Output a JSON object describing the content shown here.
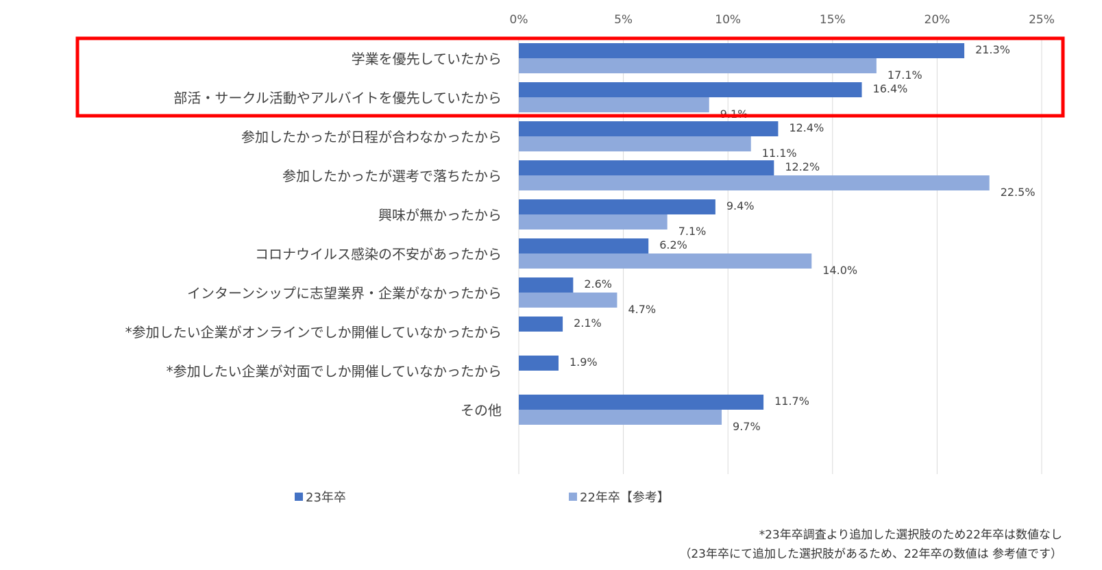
{
  "chart_data": {
    "type": "bar",
    "orientation": "horizontal",
    "categories": [
      "学業を優先していたから",
      "部活・サークル活動やアルバイトを優先していたから",
      "参加したかったが日程が合わなかったから",
      "参加したかったが選考で落ちたから",
      "興味が無かったから",
      "コロナウイルス感染の不安があったから",
      "インターンシップに志望業界・企業がなかったから",
      "*参加したい企業がオンラインでしか開催していなかったから",
      "*参加したい企業が対面でしか開催していなかったから",
      "その他"
    ],
    "series": [
      {
        "name": "23年卒",
        "color": "#4472c4",
        "values": [
          21.3,
          16.4,
          12.4,
          12.2,
          9.4,
          6.2,
          2.6,
          2.1,
          1.9,
          11.7
        ],
        "labels": [
          "21.3%",
          "16.4%",
          "12.4%",
          "12.2%",
          "9.4%",
          "6.2%",
          "2.6%",
          "2.1%",
          "1.9%",
          "11.7%"
        ]
      },
      {
        "name": "22年卒【参考】",
        "color": "#8faadc",
        "values": [
          17.1,
          9.1,
          11.1,
          22.5,
          7.1,
          14.0,
          4.7,
          null,
          null,
          9.7
        ],
        "labels": [
          "17.1%",
          "9.1%",
          "11.1%",
          "22.5%",
          "7.1%",
          "14.0%",
          "4.7%",
          "",
          "",
          "9.7%"
        ]
      }
    ],
    "xlim": [
      0,
      25
    ],
    "xticks": [
      "0%",
      "5%",
      "10%",
      "15%",
      "20%",
      "25%"
    ],
    "x_axis_position": "top",
    "grid": true,
    "legend_position": "bottom",
    "highlight": {
      "categories": [
        0,
        1
      ],
      "color": "#ff0000"
    }
  },
  "notes": {
    "line1": "*23年卒調査より追加した選択肢のため22年卒は数値なし",
    "line2": "（23年卒にて追加した選択肢があるため、22年卒の数値は 参考値です）"
  }
}
